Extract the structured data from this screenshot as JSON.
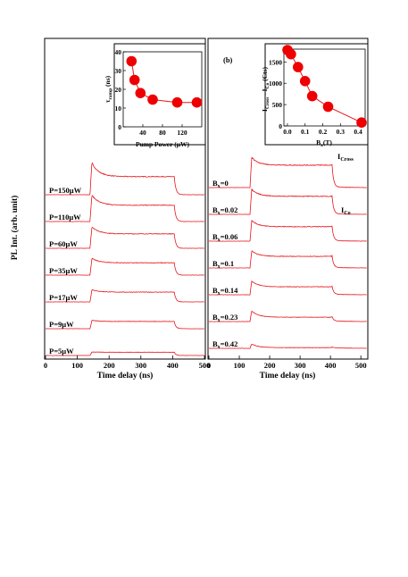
{
  "y_axis_label": "PL Int. (arb. unit)",
  "chart_data": [
    {
      "type": "line",
      "panel": "left",
      "xlabel": "Time delay (ns)",
      "xlim": [
        0,
        500
      ],
      "x_ticks": [
        0,
        100,
        200,
        300,
        400,
        500
      ],
      "pulse_on_ns": 140,
      "pulse_off_ns": 405,
      "series": [
        {
          "name": "P=150μW",
          "peak": 1.0,
          "plateau": 0.5
        },
        {
          "name": "P=110μW",
          "peak": 0.82,
          "plateau": 0.45
        },
        {
          "name": "P=60μW",
          "peak": 0.66,
          "plateau": 0.4
        },
        {
          "name": "P=35μW",
          "peak": 0.5,
          "plateau": 0.34
        },
        {
          "name": "P=17μW",
          "peak": 0.36,
          "plateau": 0.27
        },
        {
          "name": "P=9μW",
          "peak": 0.24,
          "plateau": 0.2
        },
        {
          "name": "P=5μW",
          "peak": 0.1,
          "plateau": 0.09
        }
      ]
    },
    {
      "type": "scatter",
      "panel": "left-inset",
      "xlabel": "Pump Power (μW)",
      "ylabel": "τramp (ns)",
      "ylabel_main": "τ",
      "ylabel_sub": "ramp",
      "ylabel_unit": " (ns)",
      "xlim": [
        0,
        160
      ],
      "ylim": [
        0,
        40
      ],
      "x_ticks": [
        40,
        80,
        120
      ],
      "y_ticks": [
        0,
        10,
        20,
        30,
        40
      ],
      "x": [
        17,
        23,
        35,
        60,
        110,
        150
      ],
      "y": [
        35,
        25,
        18,
        14.5,
        13,
        13
      ]
    },
    {
      "type": "line",
      "panel": "right",
      "panel_label": "(b)",
      "xlabel": "Time delay (ns)",
      "xlim": [
        0,
        520
      ],
      "x_ticks": [
        0,
        100,
        200,
        300,
        400,
        500
      ],
      "pulse_on_ns": 135,
      "pulse_off_ns": 405,
      "annotations": {
        "ico": "I",
        "ico_sub": "Co",
        "icross": "I",
        "icross_sub": "Cross"
      },
      "series": [
        {
          "name": "Bx=0",
          "label_main": "B",
          "label_sub": "x",
          "label_value": "=0",
          "peak": 0.9,
          "plateau": 0.62
        },
        {
          "name": "Bx=0.02",
          "label_main": "B",
          "label_sub": "x",
          "label_value": "=0.02",
          "peak": 0.75,
          "plateau": 0.5
        },
        {
          "name": "Bx=0.06",
          "label_main": "B",
          "label_sub": "x",
          "label_value": "=0.06",
          "peak": 0.62,
          "plateau": 0.4
        },
        {
          "name": "Bx=0.1",
          "label_main": "B",
          "label_sub": "x",
          "label_value": "=0.1",
          "peak": 0.52,
          "plateau": 0.32
        },
        {
          "name": "Bx=0.14",
          "label_main": "B",
          "label_sub": "x",
          "label_value": "=0.14",
          "peak": 0.42,
          "plateau": 0.22
        },
        {
          "name": "Bx=0.23",
          "label_main": "B",
          "label_sub": "x",
          "label_value": "=0.23",
          "peak": 0.34,
          "plateau": 0.12
        },
        {
          "name": "Bx=0.42",
          "label_main": "B",
          "label_sub": "x",
          "label_value": "=0.42",
          "peak": 0.15,
          "plateau": 0.02
        }
      ]
    },
    {
      "type": "scatter",
      "panel": "right-inset",
      "xlabel": "Bx(T)",
      "xlabel_main": "B",
      "xlabel_sub": "x",
      "xlabel_unit": "(T)",
      "ylabel": "ICross - ICo (Cts)",
      "ylabel_parts": [
        "I",
        "Cross",
        " - I",
        "Co",
        " (Cts)"
      ],
      "xlim": [
        -0.02,
        0.44
      ],
      "ylim": [
        0,
        1800
      ],
      "x_ticks": [
        0.0,
        0.1,
        0.2,
        0.3,
        0.4
      ],
      "x_tick_labels": [
        "0.0",
        "0.1",
        "0.2",
        "0.3",
        "0.4"
      ],
      "y_ticks": [
        0,
        500,
        1000,
        1500
      ],
      "x": [
        0.0,
        0.02,
        0.06,
        0.1,
        0.14,
        0.23,
        0.42
      ],
      "y": [
        1780,
        1680,
        1380,
        1050,
        700,
        450,
        80
      ]
    }
  ]
}
